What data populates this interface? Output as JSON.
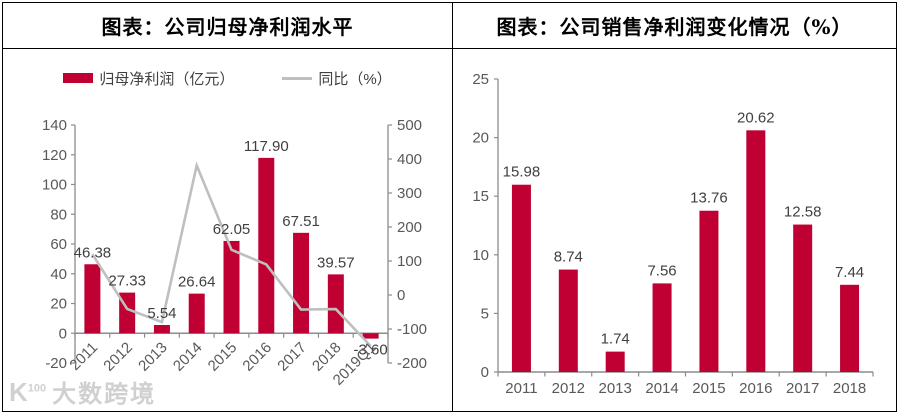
{
  "colors": {
    "bar": "#C00032",
    "line": "#BFBFBF",
    "axis": "#8C8C8C",
    "tick_text": "#595959",
    "label_text": "#404040"
  },
  "watermark": {
    "logo": "K100",
    "brand": "大数跨境"
  },
  "chart_data": [
    {
      "type": "bar",
      "title": "图表：公司归母净利润水平",
      "legend_position": "top",
      "grid": false,
      "categories": [
        "2011",
        "2012",
        "2013",
        "2014",
        "2015",
        "2016",
        "2017",
        "2018",
        "2019Q1"
      ],
      "series": [
        {
          "name": "归母净利润（亿元）",
          "type": "bar",
          "axis": "left",
          "values": [
            46.38,
            27.33,
            5.54,
            26.64,
            62.05,
            117.9,
            67.51,
            39.57,
            -3.6
          ],
          "data_labels": [
            "46.38",
            "27.33",
            "5.54",
            "26.64",
            "62.05",
            "117.90",
            "67.51",
            "39.57",
            "-3.60"
          ]
        },
        {
          "name": "同比（%）",
          "type": "line",
          "axis": "right",
          "values": [
            120,
            -41.1,
            -79.7,
            380.9,
            132.9,
            90,
            -42.7,
            -41.4,
            -150
          ],
          "note": "values estimated from line position; no data labels shown in chart"
        }
      ],
      "left_axis": {
        "min": -20,
        "max": 140,
        "step": 20
      },
      "right_axis": {
        "min": -200,
        "max": 500,
        "step": 100
      }
    },
    {
      "type": "bar",
      "title": "图表：公司销售净利润变化情况（%）",
      "grid": false,
      "categories": [
        "2011",
        "2012",
        "2013",
        "2014",
        "2015",
        "2016",
        "2017",
        "2018"
      ],
      "values": [
        15.98,
        8.74,
        1.74,
        7.56,
        13.76,
        20.62,
        12.58,
        7.44
      ],
      "data_labels": [
        "15.98",
        "8.74",
        "1.74",
        "7.56",
        "13.76",
        "20.62",
        "12.58",
        "7.44"
      ],
      "y_axis": {
        "min": 0,
        "max": 25,
        "step": 5
      }
    }
  ]
}
